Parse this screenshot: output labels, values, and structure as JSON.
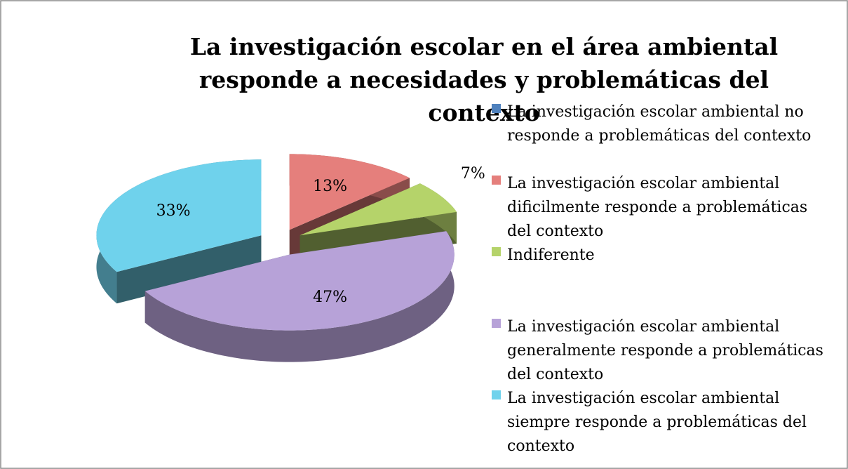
{
  "chart_data": {
    "type": "pie",
    "title": "La investigación escolar en el área ambiental responde a necesidades y problemáticas del contexto",
    "categories": [
      "La investigación escolar ambiental no responde a problemáticas del contexto",
      "La investigación escolar ambiental dificilmente responde a problemáticas del contexto",
      "Indiferente",
      "La investigación escolar ambiental generalmente responde a problemáticas del contexto",
      "La investigación escolar ambiental siempre responde a problemáticas del contexto"
    ],
    "values": [
      0,
      13,
      7,
      47,
      33
    ],
    "value_labels": [
      null,
      "13%",
      "7%",
      "47%",
      "33%"
    ],
    "colors": [
      "#4f81bd",
      "#e57f7c",
      "#b5d36a",
      "#b7a2d8",
      "#6fd2ec"
    ],
    "legend": "right"
  }
}
